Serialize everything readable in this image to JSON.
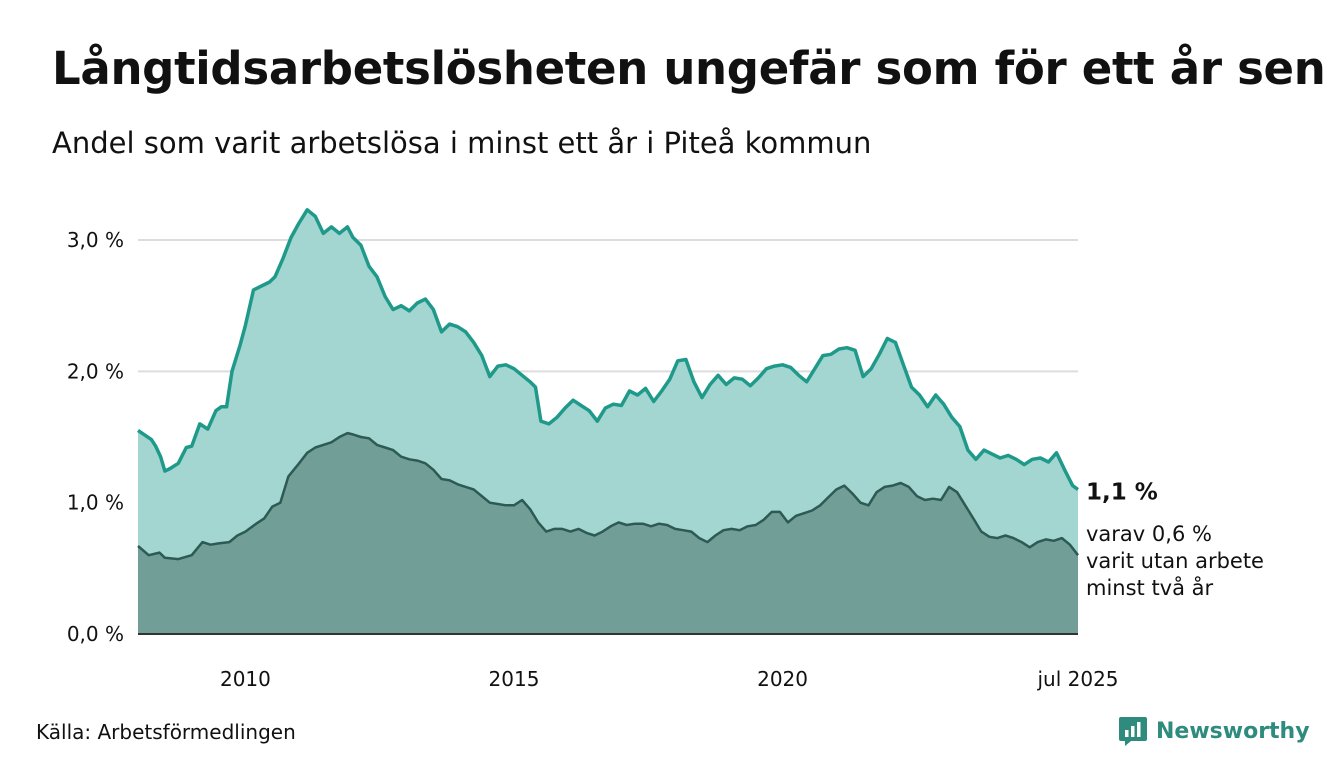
{
  "header": {
    "title": "Långtidsarbetslösheten ungefär som för ett år sen",
    "subtitle": "Andel som varit arbetslösa i minst ett år i Piteå kommun"
  },
  "footer": {
    "source": "Källa: Arbetsförmedlingen",
    "brand": "Newsworthy"
  },
  "colors": {
    "series1_line": "#1f9a8a",
    "series1_fill": "#a3d6d1",
    "series2_line": "#2d5a52",
    "series2_fill": "#719f98",
    "grid": "#dddddd",
    "brand": "#2e8b7e"
  },
  "chart_data": {
    "type": "area",
    "title": "Långtidsarbetslösheten ungefär som för ett år sen",
    "subtitle": "Andel som varit arbetslösa i minst ett år i Piteå kommun",
    "xlim": [
      2008.0,
      2025.5
    ],
    "ylim": [
      0,
      3.3
    ],
    "grid": true,
    "y_ticks": [
      {
        "value": 0,
        "label": "0,0 %"
      },
      {
        "value": 1,
        "label": "1,0 %"
      },
      {
        "value": 2,
        "label": "2,0 %"
      },
      {
        "value": 3,
        "label": "3,0 %"
      }
    ],
    "x_ticks": [
      {
        "value": 2010,
        "label": "2010"
      },
      {
        "value": 2015,
        "label": "2015"
      },
      {
        "value": 2020,
        "label": "2020"
      },
      {
        "value": 2025.5,
        "label": "jul 2025"
      }
    ],
    "series": [
      {
        "id": "minst_ett_ar",
        "end_label": "1,1 %",
        "x": [
          2008.0,
          2008.25,
          2008.33,
          2008.42,
          2008.5,
          2008.6,
          2008.75,
          2008.9,
          2009.0,
          2009.15,
          2009.3,
          2009.45,
          2009.55,
          2009.65,
          2009.75,
          2009.9,
          2010.0,
          2010.15,
          2010.3,
          2010.45,
          2010.55,
          2010.7,
          2010.85,
          2011.0,
          2011.15,
          2011.3,
          2011.45,
          2011.6,
          2011.75,
          2011.9,
          2012.0,
          2012.15,
          2012.3,
          2012.45,
          2012.6,
          2012.75,
          2012.9,
          2013.05,
          2013.2,
          2013.35,
          2013.5,
          2013.65,
          2013.8,
          2013.95,
          2014.1,
          2014.25,
          2014.4,
          2014.55,
          2014.7,
          2014.85,
          2015.0,
          2015.15,
          2015.3,
          2015.4,
          2015.5,
          2015.65,
          2015.8,
          2015.95,
          2016.1,
          2016.25,
          2016.4,
          2016.55,
          2016.7,
          2016.85,
          2017.0,
          2017.15,
          2017.3,
          2017.45,
          2017.6,
          2017.75,
          2017.9,
          2018.05,
          2018.2,
          2018.35,
          2018.5,
          2018.65,
          2018.8,
          2018.95,
          2019.1,
          2019.25,
          2019.4,
          2019.55,
          2019.7,
          2019.85,
          2020.0,
          2020.15,
          2020.3,
          2020.45,
          2020.6,
          2020.75,
          2020.9,
          2021.05,
          2021.2,
          2021.35,
          2021.5,
          2021.65,
          2021.8,
          2021.95,
          2022.1,
          2022.25,
          2022.4,
          2022.55,
          2022.7,
          2022.85,
          2023.0,
          2023.15,
          2023.3,
          2023.45,
          2023.6,
          2023.75,
          2023.9,
          2024.05,
          2024.2,
          2024.35,
          2024.5,
          2024.65,
          2024.8,
          2024.95,
          2025.1,
          2025.25,
          2025.4,
          2025.5
        ],
        "y": [
          1.55,
          1.48,
          1.43,
          1.35,
          1.24,
          1.26,
          1.3,
          1.42,
          1.43,
          1.6,
          1.56,
          1.7,
          1.73,
          1.73,
          2.0,
          2.2,
          2.35,
          2.62,
          2.65,
          2.68,
          2.72,
          2.86,
          3.02,
          3.13,
          3.23,
          3.18,
          3.05,
          3.1,
          3.05,
          3.1,
          3.02,
          2.96,
          2.8,
          2.72,
          2.57,
          2.47,
          2.5,
          2.46,
          2.52,
          2.55,
          2.47,
          2.3,
          2.36,
          2.34,
          2.3,
          2.22,
          2.12,
          1.96,
          2.04,
          2.05,
          2.02,
          1.97,
          1.92,
          1.88,
          1.62,
          1.6,
          1.65,
          1.72,
          1.78,
          1.74,
          1.7,
          1.62,
          1.72,
          1.75,
          1.74,
          1.85,
          1.82,
          1.87,
          1.77,
          1.85,
          1.94,
          2.08,
          2.09,
          1.92,
          1.8,
          1.9,
          1.97,
          1.9,
          1.95,
          1.94,
          1.89,
          1.95,
          2.02,
          2.04,
          2.05,
          2.03,
          1.97,
          1.92,
          2.02,
          2.12,
          2.13,
          2.17,
          2.18,
          2.16,
          1.96,
          2.02,
          2.13,
          2.25,
          2.22,
          2.05,
          1.88,
          1.82,
          1.73,
          1.82,
          1.75,
          1.65,
          1.58,
          1.4,
          1.33,
          1.4,
          1.37,
          1.34,
          1.36,
          1.33,
          1.29,
          1.33,
          1.34,
          1.31,
          1.38,
          1.25,
          1.13,
          1.1
        ]
      },
      {
        "id": "minst_tva_ar",
        "end_label": "varav 0,6 % varit utan arbete minst två år",
        "end_label_lines": [
          "varav 0,6 %",
          "varit utan arbete",
          "minst två år"
        ],
        "x": [
          2008.0,
          2008.2,
          2008.4,
          2008.5,
          2008.75,
          2009.0,
          2009.2,
          2009.35,
          2009.5,
          2009.7,
          2009.85,
          2010.0,
          2010.2,
          2010.35,
          2010.5,
          2010.65,
          2010.8,
          2011.0,
          2011.15,
          2011.3,
          2011.45,
          2011.6,
          2011.75,
          2011.9,
          2012.0,
          2012.15,
          2012.3,
          2012.45,
          2012.6,
          2012.75,
          2012.9,
          2013.05,
          2013.2,
          2013.35,
          2013.5,
          2013.65,
          2013.8,
          2013.95,
          2014.1,
          2014.25,
          2014.4,
          2014.55,
          2014.7,
          2014.85,
          2015.0,
          2015.15,
          2015.3,
          2015.45,
          2015.6,
          2015.75,
          2015.9,
          2016.05,
          2016.2,
          2016.35,
          2016.5,
          2016.65,
          2016.8,
          2016.95,
          2017.1,
          2017.25,
          2017.4,
          2017.55,
          2017.7,
          2017.85,
          2018.0,
          2018.15,
          2018.3,
          2018.45,
          2018.6,
          2018.75,
          2018.9,
          2019.05,
          2019.2,
          2019.35,
          2019.5,
          2019.65,
          2019.8,
          2019.95,
          2020.1,
          2020.25,
          2020.4,
          2020.55,
          2020.7,
          2020.85,
          2021.0,
          2021.15,
          2021.3,
          2021.45,
          2021.6,
          2021.75,
          2021.9,
          2022.05,
          2022.2,
          2022.35,
          2022.5,
          2022.65,
          2022.8,
          2022.95,
          2023.1,
          2023.25,
          2023.4,
          2023.55,
          2023.7,
          2023.85,
          2024.0,
          2024.15,
          2024.3,
          2024.45,
          2024.6,
          2024.75,
          2024.9,
          2025.05,
          2025.2,
          2025.35,
          2025.5
        ],
        "y": [
          0.67,
          0.6,
          0.62,
          0.58,
          0.57,
          0.6,
          0.7,
          0.68,
          0.69,
          0.7,
          0.75,
          0.78,
          0.84,
          0.88,
          0.97,
          1.0,
          1.2,
          1.3,
          1.38,
          1.42,
          1.44,
          1.46,
          1.5,
          1.53,
          1.52,
          1.5,
          1.49,
          1.44,
          1.42,
          1.4,
          1.35,
          1.33,
          1.32,
          1.3,
          1.25,
          1.18,
          1.17,
          1.14,
          1.12,
          1.1,
          1.05,
          1.0,
          0.99,
          0.98,
          0.98,
          1.02,
          0.95,
          0.85,
          0.78,
          0.8,
          0.8,
          0.78,
          0.8,
          0.77,
          0.75,
          0.78,
          0.82,
          0.85,
          0.83,
          0.84,
          0.84,
          0.82,
          0.84,
          0.83,
          0.8,
          0.79,
          0.78,
          0.73,
          0.7,
          0.75,
          0.79,
          0.8,
          0.79,
          0.82,
          0.83,
          0.87,
          0.93,
          0.93,
          0.85,
          0.9,
          0.92,
          0.94,
          0.98,
          1.04,
          1.1,
          1.13,
          1.07,
          1.0,
          0.98,
          1.08,
          1.12,
          1.13,
          1.15,
          1.12,
          1.05,
          1.02,
          1.03,
          1.02,
          1.12,
          1.08,
          0.98,
          0.88,
          0.78,
          0.74,
          0.73,
          0.75,
          0.73,
          0.7,
          0.66,
          0.7,
          0.72,
          0.71,
          0.73,
          0.68,
          0.6
        ]
      }
    ]
  }
}
